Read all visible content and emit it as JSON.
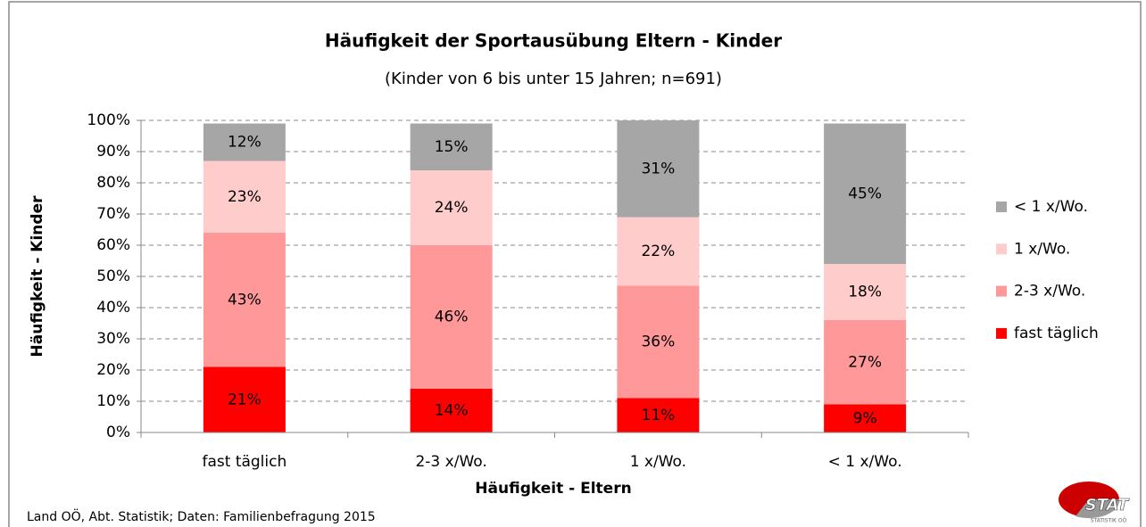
{
  "chart_data": {
    "type": "stacked_bar",
    "title": "Häufigkeit der Sportausübung Eltern - Kinder",
    "subtitle": "(Kinder von 6 bis unter 15 Jahren; n=691)",
    "x_label": "Häufigkeit - Eltern",
    "y_label": "Häufigkeit - Kinder",
    "source": "Land OÖ, Abt. Statistik; Daten: Familienbefragung 2015",
    "logo": {
      "text": "STAT",
      "subtext": "STATISTIK OÖ"
    },
    "categories": [
      "fast täglich",
      "2-3 x/Wo.",
      "1 x/Wo.",
      "< 1 x/Wo."
    ],
    "series": [
      {
        "name": "fast täglich",
        "color": "#ff0000",
        "values": [
          21,
          14,
          11,
          9
        ],
        "value_labels": [
          "21%",
          "14%",
          "11%",
          "9%"
        ]
      },
      {
        "name": "2-3 x/Wo.",
        "color": "#ff9999",
        "values": [
          43,
          46,
          36,
          27
        ],
        "value_labels": [
          "43%",
          "46%",
          "36%",
          "27%"
        ]
      },
      {
        "name": "1 x/Wo.",
        "color": "#ffcccc",
        "values": [
          23,
          24,
          22,
          18
        ],
        "value_labels": [
          "23%",
          "24%",
          "22%",
          "18%"
        ]
      },
      {
        "name": "< 1 x/Wo.",
        "color": "#a6a6a6",
        "values": [
          12,
          15,
          31,
          45
        ],
        "value_labels": [
          "12%",
          "15%",
          "31%",
          "45%"
        ]
      }
    ],
    "ylim": [
      0,
      100
    ],
    "yticks": [
      {
        "value": 0,
        "label": "0%"
      },
      {
        "value": 10,
        "label": "10%"
      },
      {
        "value": 20,
        "label": "20%"
      },
      {
        "value": 30,
        "label": "30%"
      },
      {
        "value": 40,
        "label": "40%"
      },
      {
        "value": 50,
        "label": "50%"
      },
      {
        "value": 60,
        "label": "60%"
      },
      {
        "value": 70,
        "label": "70%"
      },
      {
        "value": 80,
        "label": "80%"
      },
      {
        "value": 90,
        "label": "90%"
      },
      {
        "value": 100,
        "label": "100%"
      }
    ],
    "grid": true,
    "legend": "right"
  }
}
